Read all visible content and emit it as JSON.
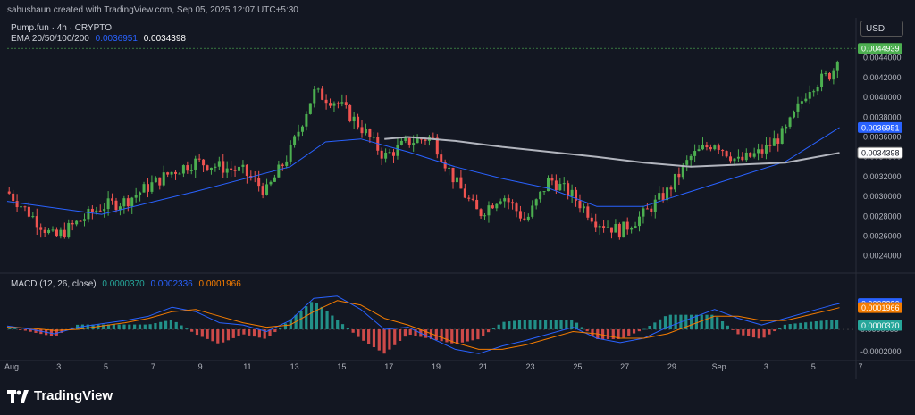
{
  "header": {
    "credit": "sahushaun created with TradingView.com, Sep 05, 2025 12:07 UTC+5:30",
    "symbol_line": "Pump.fun · 4h · CRYPTO",
    "ema_label": "EMA 20/50/100/200",
    "ema_value_1": "0.0036951",
    "ema_value_2": "0.0034398",
    "currency": "USD"
  },
  "macd_header": {
    "label": "MACD (12, 26, close)",
    "hist_value": "0.0000370",
    "macd_value": "0.0002336",
    "signal_value": "0.0001966"
  },
  "brand": "TradingView",
  "colors": {
    "background": "#131722",
    "up": "#26a69a",
    "up_bright": "#4caf50",
    "down": "#ef5350",
    "ema_blue": "#2962ff",
    "ema_white": "#b2b5be",
    "macd_blue": "#2962ff",
    "signal_orange": "#f57c00",
    "hist_pos": "#26a69a",
    "hist_neg": "#ef5350"
  },
  "chart_data": {
    "type": "candlestick",
    "title": "Pump.fun · 4h · CRYPTO",
    "price_axis": {
      "ticks": [
        "0.0044000",
        "0.0042000",
        "0.0040000",
        "0.0038000",
        "0.0036000",
        "0.0034000",
        "0.0032000",
        "0.0030000",
        "0.0028000",
        "0.0026000",
        "0.0024000"
      ],
      "ylim": [
        0.00228,
        0.00455
      ]
    },
    "price_labels": [
      {
        "text": "0.0044939",
        "value": 0.0044939,
        "color": "#4caf50"
      },
      {
        "text": "0.0036951",
        "value": 0.0036951,
        "color": "#2962ff"
      },
      {
        "text": "0.0034398",
        "value": 0.0034398,
        "color": "#ffffff"
      }
    ],
    "macd_axis": {
      "ticks": [
        "0.0000000",
        "-0.0002000"
      ],
      "ylim": [
        -0.00029,
        0.00046
      ]
    },
    "macd_labels": [
      {
        "text": "0.0002336",
        "value": 0.0002336,
        "color": "#2962ff"
      },
      {
        "text": "0.0001966",
        "value": 0.0001966,
        "color": "#f57c00"
      },
      {
        "text": "0.0000370",
        "value": 3.7e-05,
        "color": "#26a69a"
      }
    ],
    "x_ticks": [
      "Aug",
      "3",
      "5",
      "7",
      "9",
      "11",
      "13",
      "15",
      "17",
      "19",
      "21",
      "23",
      "25",
      "27",
      "29",
      "Sep",
      "3",
      "5",
      "7"
    ],
    "close_path": {
      "t": [
        0,
        2,
        4,
        5,
        7,
        8,
        10,
        11,
        12,
        13,
        14,
        15,
        16,
        17,
        18,
        19,
        20,
        21,
        22,
        23,
        24,
        25,
        26,
        27,
        28,
        29,
        30,
        31,
        32,
        33,
        34,
        35,
        35.3
      ],
      "price": [
        0.00305,
        0.00258,
        0.0029,
        0.00295,
        0.00325,
        0.00335,
        0.00325,
        0.00305,
        0.00345,
        0.00405,
        0.00395,
        0.0037,
        0.0034,
        0.00355,
        0.0036,
        0.00315,
        0.00282,
        0.00302,
        0.00275,
        0.00318,
        0.003,
        0.00275,
        0.00265,
        0.00282,
        0.00305,
        0.0034,
        0.00355,
        0.00335,
        0.00345,
        0.00365,
        0.0041,
        0.00425,
        0.00449
      ]
    },
    "ema_short": {
      "t": [
        0,
        4,
        8,
        12,
        13.5,
        15,
        17,
        19,
        21,
        23,
        25,
        27,
        29,
        31,
        33,
        34,
        35.3
      ],
      "price": [
        0.00295,
        0.00282,
        0.00305,
        0.0033,
        0.00355,
        0.00358,
        0.00345,
        0.0033,
        0.00318,
        0.00308,
        0.0029,
        0.0029,
        0.00305,
        0.0032,
        0.00335,
        0.0035,
        0.0036951
      ]
    },
    "ema_long": {
      "t": [
        16,
        17,
        19,
        21,
        23,
        25,
        27,
        29,
        31,
        33,
        35.3
      ],
      "price": [
        0.00358,
        0.0036,
        0.00356,
        0.0035,
        0.00345,
        0.0034,
        0.00334,
        0.0033,
        0.00332,
        0.00334,
        0.0034398
      ]
    },
    "macd": {
      "t": [
        0,
        1,
        2,
        3,
        4,
        5,
        6,
        7,
        8,
        9,
        10,
        11,
        12,
        13,
        14,
        15,
        16,
        17,
        18,
        19,
        20,
        21,
        22,
        23,
        24,
        25,
        26,
        27,
        28,
        29,
        30,
        31,
        32,
        33,
        34,
        35,
        35.3
      ],
      "macd": [
        3e-05,
        0.0,
        -4e-05,
        2e-05,
        5e-05,
        8e-05,
        0.00012,
        0.0002,
        0.00016,
        6e-05,
        4e-05,
        -2e-05,
        8e-05,
        0.00028,
        0.0003,
        0.00018,
        0.0,
        2e-05,
        -8e-05,
        -0.00018,
        -0.00022,
        -0.00015,
        -0.0001,
        -4e-05,
        2e-05,
        -8e-05,
        -0.00012,
        -8e-05,
        2e-05,
        0.0001,
        0.00018,
        0.0001,
        4e-05,
        0.0001,
        0.00016,
        0.00022,
        0.0002336
      ],
      "signal": [
        2e-05,
        1e-05,
        -1e-05,
        0.0,
        3e-05,
        6e-05,
        0.0001,
        0.00016,
        0.00018,
        0.00012,
        6e-05,
        2e-05,
        4e-05,
        0.00016,
        0.00026,
        0.00022,
        0.0001,
        4e-05,
        -4e-05,
        -0.00012,
        -0.00018,
        -0.00018,
        -0.00014,
        -8e-05,
        -2e-05,
        -4e-05,
        -8e-05,
        -8e-05,
        -4e-05,
        4e-05,
        0.00012,
        0.00012,
        8e-05,
        8e-05,
        0.00013,
        0.00018,
        0.0001966
      ]
    }
  }
}
